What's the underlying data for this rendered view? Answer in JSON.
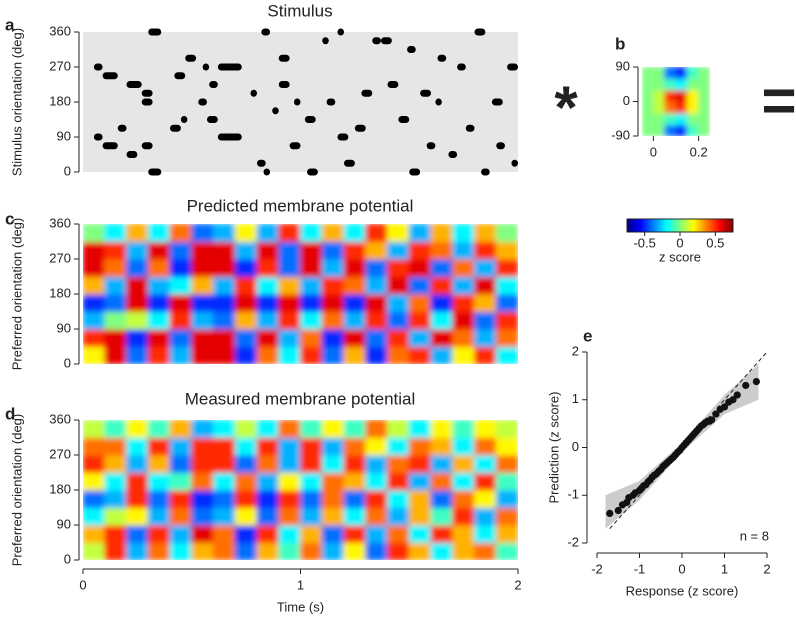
{
  "operators": [
    "*",
    "="
  ],
  "chart_data": [
    {
      "type": "raster",
      "panel": "a",
      "title": "Stimulus",
      "ylabel": "Stimulus orientation (deg)",
      "xlim": [
        0,
        2
      ],
      "ylim": [
        0,
        360
      ],
      "yticks": [
        0,
        90,
        180,
        270,
        360
      ],
      "color": "#000000",
      "background": "#e6e6e8",
      "events": [
        [
          0.05,
          0.09,
          270
        ],
        [
          0.09,
          0.16,
          247.5
        ],
        [
          0.05,
          0.09,
          90
        ],
        [
          0.09,
          0.16,
          67.5
        ],
        [
          0.16,
          0.2,
          112.5
        ],
        [
          0.2,
          0.25,
          45
        ],
        [
          0.2,
          0.27,
          225
        ],
        [
          0.27,
          0.32,
          202.5
        ],
        [
          0.27,
          0.32,
          180
        ],
        [
          0.3,
          0.36,
          360
        ],
        [
          0.27,
          0.32,
          67.5
        ],
        [
          0.3,
          0.36,
          0
        ],
        [
          0.4,
          0.45,
          112.5
        ],
        [
          0.42,
          0.47,
          247.5
        ],
        [
          0.45,
          0.48,
          135
        ],
        [
          0.47,
          0.52,
          292.5
        ],
        [
          0.53,
          0.57,
          180
        ],
        [
          0.55,
          0.58,
          270
        ],
        [
          0.57,
          0.62,
          135
        ],
        [
          0.58,
          0.62,
          225
        ],
        [
          0.62,
          0.73,
          270
        ],
        [
          0.62,
          0.73,
          90
        ],
        [
          0.77,
          0.8,
          202.5
        ],
        [
          0.8,
          0.84,
          22.5
        ],
        [
          0.82,
          0.86,
          360
        ],
        [
          0.83,
          0.86,
          0
        ],
        [
          0.87,
          0.9,
          157.5
        ],
        [
          0.9,
          0.95,
          292.5
        ],
        [
          0.9,
          0.95,
          225
        ],
        [
          0.95,
          1.0,
          67.5
        ],
        [
          0.97,
          1.0,
          180
        ],
        [
          1.03,
          1.08,
          0
        ],
        [
          1.02,
          1.07,
          135
        ],
        [
          1.1,
          1.13,
          337.5
        ],
        [
          1.12,
          1.16,
          180
        ],
        [
          1.17,
          1.2,
          360
        ],
        [
          1.17,
          1.22,
          90
        ],
        [
          1.2,
          1.25,
          22.5
        ],
        [
          1.25,
          1.3,
          112.5
        ],
        [
          1.28,
          1.33,
          202.5
        ],
        [
          1.33,
          1.37,
          337.5
        ],
        [
          1.37,
          1.42,
          337.5
        ],
        [
          1.4,
          1.45,
          225
        ],
        [
          1.45,
          1.5,
          135
        ],
        [
          1.49,
          1.53,
          315
        ],
        [
          1.5,
          1.55,
          0
        ],
        [
          1.55,
          1.6,
          202.5
        ],
        [
          1.58,
          1.62,
          67.5
        ],
        [
          1.62,
          1.65,
          180
        ],
        [
          1.63,
          1.67,
          292.5
        ],
        [
          1.68,
          1.72,
          45
        ],
        [
          1.72,
          1.76,
          270
        ],
        [
          1.76,
          1.8,
          112.5
        ],
        [
          1.8,
          1.85,
          360
        ],
        [
          1.83,
          1.87,
          0
        ],
        [
          1.88,
          1.93,
          180
        ],
        [
          1.9,
          1.94,
          67.5
        ],
        [
          1.95,
          2.0,
          270
        ],
        [
          1.97,
          2.0,
          22.5
        ]
      ]
    },
    {
      "type": "heatmap",
      "panel": "c",
      "title": "Predicted membrane potential",
      "ylabel": "Preferred orientation (deg)",
      "ylim": [
        0,
        360
      ],
      "yticks": [
        0,
        90,
        180,
        270,
        360
      ],
      "xbins": [
        0,
        0.1,
        0.2,
        0.3,
        0.4,
        0.5,
        0.6,
        0.7,
        0.8,
        0.9,
        1.0,
        1.1,
        1.2,
        1.3,
        1.4,
        1.5,
        1.6,
        1.7,
        1.8,
        1.9,
        2.0
      ],
      "ybins": [
        0,
        45,
        90,
        135,
        180,
        225,
        270,
        315,
        360
      ],
      "z": [
        [
          0.2,
          0.6,
          -0.4,
          0.5,
          -0.3,
          0.6,
          0.6,
          -0.5,
          0.4,
          -0.2,
          0.5,
          -0.4,
          0.3,
          -0.5,
          0.4,
          0.5,
          -0.3,
          0.2,
          0.5,
          -0.2
        ],
        [
          0.5,
          0.6,
          -0.5,
          0.6,
          -0.4,
          0.6,
          0.6,
          -0.4,
          0.6,
          -0.3,
          0.4,
          -0.5,
          0.6,
          -0.4,
          0.5,
          -0.3,
          0.6,
          0.4,
          -0.3,
          0.4
        ],
        [
          -0.3,
          0.0,
          0.1,
          -0.2,
          0.5,
          -0.3,
          -0.4,
          0.3,
          -0.3,
          0.5,
          -0.2,
          0.4,
          -0.3,
          0.5,
          -0.4,
          0.5,
          -0.2,
          0.6,
          -0.4,
          0.5
        ],
        [
          -0.5,
          -0.4,
          0.6,
          -0.5,
          0.6,
          -0.5,
          -0.5,
          0.6,
          -0.5,
          0.6,
          -0.5,
          0.6,
          -0.5,
          0.6,
          -0.3,
          0.4,
          -0.5,
          0.5,
          0.3,
          -0.4
        ],
        [
          0.3,
          -0.3,
          0.6,
          -0.3,
          -0.2,
          0.3,
          -0.3,
          0.5,
          -0.2,
          0.3,
          -0.3,
          0.5,
          0.4,
          -0.3,
          0.6,
          -0.4,
          0.5,
          -0.3,
          0.6,
          -0.2
        ],
        [
          0.6,
          0.4,
          -0.4,
          0.4,
          -0.5,
          0.6,
          0.6,
          -0.5,
          0.5,
          -0.4,
          0.6,
          -0.3,
          0.6,
          -0.4,
          0.5,
          0.6,
          -0.4,
          0.4,
          -0.3,
          0.5
        ],
        [
          0.6,
          0.5,
          -0.3,
          0.6,
          -0.4,
          0.6,
          0.6,
          -0.3,
          0.6,
          -0.4,
          0.6,
          -0.4,
          0.5,
          0.3,
          -0.3,
          0.5,
          0.4,
          -0.3,
          0.5,
          0.3
        ],
        [
          0.0,
          -0.2,
          0.3,
          -0.2,
          0.4,
          -0.4,
          -0.3,
          0.2,
          -0.3,
          0.5,
          -0.2,
          0.3,
          -0.2,
          0.5,
          0.2,
          -0.3,
          0.3,
          -0.2,
          0.3,
          0.0
        ]
      ]
    },
    {
      "type": "heatmap",
      "panel": "d",
      "title": "Measured membrane potential",
      "ylabel": "Preferred orientation (deg)",
      "xlabel": "Time (s)",
      "xlim": [
        0,
        2
      ],
      "xticks": [
        0,
        1,
        2
      ],
      "ylim": [
        0,
        360
      ],
      "yticks": [
        0,
        90,
        180,
        270,
        360
      ],
      "xbins": [
        0,
        0.1,
        0.2,
        0.3,
        0.4,
        0.5,
        0.6,
        0.7,
        0.8,
        0.9,
        1.0,
        1.1,
        1.2,
        1.3,
        1.4,
        1.5,
        1.6,
        1.7,
        1.8,
        1.9,
        2.0
      ],
      "ybins": [
        0,
        45,
        90,
        135,
        180,
        225,
        270,
        315,
        360
      ],
      "z": [
        [
          0.1,
          0.5,
          -0.3,
          0.4,
          -0.2,
          0.3,
          0.4,
          -0.4,
          0.3,
          -0.1,
          0.4,
          -0.3,
          0.2,
          -0.4,
          0.5,
          0.3,
          -0.2,
          0.3,
          0.4,
          -0.1
        ],
        [
          0.3,
          0.5,
          -0.4,
          0.5,
          -0.3,
          0.6,
          0.4,
          -0.5,
          0.5,
          -0.2,
          0.3,
          -0.4,
          0.5,
          -0.3,
          0.4,
          -0.2,
          0.5,
          0.3,
          -0.2,
          0.3
        ],
        [
          -0.2,
          0.1,
          0.2,
          -0.3,
          0.4,
          -0.4,
          -0.3,
          0.2,
          -0.4,
          0.4,
          -0.3,
          0.3,
          -0.2,
          0.4,
          -0.3,
          0.3,
          -0.1,
          0.5,
          -0.3,
          0.4
        ],
        [
          -0.4,
          -0.3,
          0.5,
          -0.4,
          0.5,
          -0.5,
          -0.4,
          0.5,
          -0.5,
          0.5,
          -0.4,
          0.4,
          -0.4,
          0.5,
          -0.2,
          0.3,
          -0.4,
          0.4,
          0.2,
          -0.3
        ],
        [
          0.2,
          -0.2,
          0.5,
          -0.2,
          -0.1,
          0.4,
          -0.2,
          0.4,
          -0.3,
          0.2,
          -0.2,
          0.4,
          0.3,
          -0.2,
          0.5,
          -0.3,
          0.4,
          -0.2,
          0.5,
          -0.1
        ],
        [
          0.5,
          0.3,
          -0.3,
          0.3,
          -0.4,
          0.5,
          0.5,
          -0.4,
          0.4,
          -0.3,
          0.5,
          -0.2,
          0.5,
          -0.3,
          0.4,
          0.5,
          -0.3,
          0.3,
          -0.2,
          0.4
        ],
        [
          0.4,
          0.4,
          -0.2,
          0.5,
          -0.3,
          0.5,
          0.5,
          -0.2,
          0.5,
          -0.3,
          0.5,
          -0.3,
          0.4,
          0.2,
          -0.2,
          0.4,
          0.3,
          -0.2,
          0.4,
          0.2
        ],
        [
          0.1,
          -0.1,
          0.2,
          -0.1,
          0.3,
          -0.3,
          -0.2,
          0.1,
          -0.2,
          0.4,
          -0.1,
          0.2,
          -0.1,
          0.4,
          0.1,
          -0.2,
          0.2,
          -0.1,
          0.2,
          0.1
        ]
      ]
    },
    {
      "type": "heatmap",
      "panel": "b",
      "xlim": [
        -0.05,
        0.25
      ],
      "ylim": [
        -90,
        90
      ],
      "xticks": [
        0,
        0.2
      ],
      "yticks": [
        -90,
        0,
        90
      ],
      "xbins": [
        -0.05,
        0,
        0.05,
        0.1,
        0.15,
        0.2,
        0.25
      ],
      "ybins": [
        -90,
        -60,
        -30,
        0,
        30,
        60,
        90
      ],
      "z": [
        [
          0,
          0,
          -0.4,
          -0.5,
          -0.1,
          0
        ],
        [
          0,
          0,
          -0.1,
          -0.2,
          0,
          0
        ],
        [
          0,
          0.1,
          0.4,
          0.5,
          0.2,
          0
        ],
        [
          0,
          0.1,
          0.5,
          0.6,
          0.2,
          0
        ],
        [
          0,
          0,
          -0.1,
          -0.2,
          0,
          0
        ],
        [
          0,
          0,
          -0.4,
          -0.5,
          -0.1,
          0
        ]
      ],
      "clim": [
        -0.75,
        0.75
      ],
      "colormap": "jet",
      "colorbar_ticks": [
        -0.5,
        0,
        0.5
      ],
      "colorbar_label": "z score"
    },
    {
      "type": "scatter",
      "panel": "e",
      "xlabel": "Response (z score)",
      "ylabel": "Prediction (z score)",
      "annotation": "n = 8",
      "xlim": [
        -2,
        2
      ],
      "ylim": [
        -2,
        2
      ],
      "xticks": [
        -2,
        -1,
        0,
        1,
        2
      ],
      "yticks": [
        -2,
        -1,
        0,
        1,
        2
      ],
      "color": "#111111",
      "band_color": "#cccccc",
      "x": [
        -1.7,
        -1.5,
        -1.4,
        -1.3,
        -1.25,
        -1.15,
        -1.1,
        -1.0,
        -0.95,
        -0.9,
        -0.85,
        -0.8,
        -0.75,
        -0.7,
        -0.65,
        -0.6,
        -0.55,
        -0.5,
        -0.45,
        -0.4,
        -0.35,
        -0.3,
        -0.25,
        -0.2,
        -0.15,
        -0.1,
        -0.05,
        0,
        0.05,
        0.1,
        0.15,
        0.2,
        0.25,
        0.3,
        0.35,
        0.4,
        0.45,
        0.5,
        0.55,
        0.6,
        0.65,
        0.7,
        0.8,
        0.9,
        1.0,
        1.1,
        1.2,
        1.3,
        1.5,
        1.75
      ],
      "y": [
        -1.38,
        -1.32,
        -1.2,
        -1.15,
        -1.05,
        -1.0,
        -0.95,
        -0.9,
        -0.85,
        -0.8,
        -0.78,
        -0.72,
        -0.68,
        -0.62,
        -0.58,
        -0.55,
        -0.5,
        -0.46,
        -0.4,
        -0.36,
        -0.32,
        -0.28,
        -0.24,
        -0.2,
        -0.15,
        -0.1,
        -0.06,
        0,
        0.05,
        0.1,
        0.15,
        0.2,
        0.25,
        0.3,
        0.35,
        0.4,
        0.45,
        0.48,
        0.52,
        0.55,
        0.55,
        0.58,
        0.7,
        0.8,
        0.85,
        0.95,
        1.0,
        1.1,
        1.3,
        1.38
      ],
      "band_x": [
        -1.8,
        -1,
        0,
        1,
        1.8
      ],
      "band_lower": [
        -1.7,
        -1.1,
        -0.1,
        0.7,
        1.0
      ],
      "band_upper": [
        -1.0,
        -0.7,
        0.1,
        1.1,
        1.75
      ]
    }
  ]
}
